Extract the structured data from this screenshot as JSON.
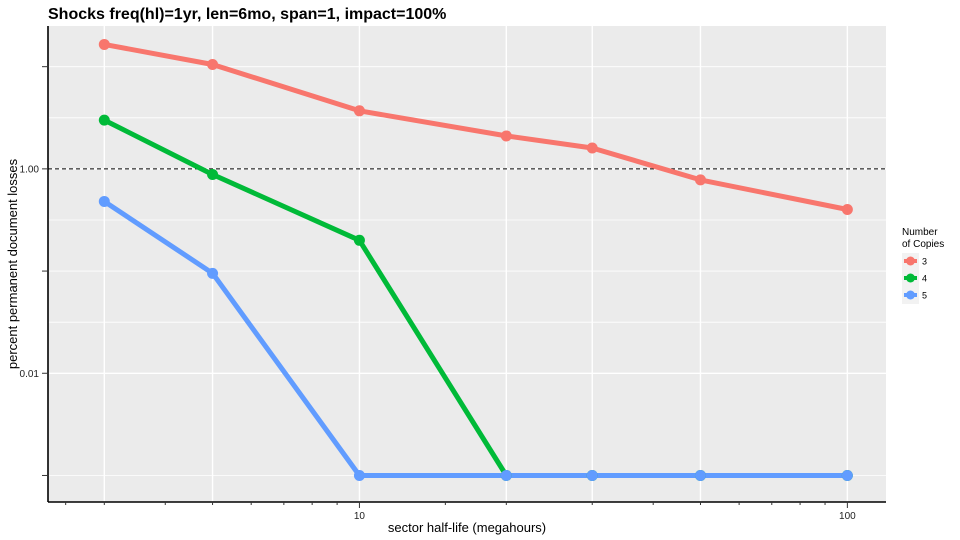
{
  "chart_data": {
    "type": "line",
    "title": "Shocks freq(hl)=1yr, len=6mo, span=1, impact=100%",
    "xlabel": "sector half-life (megahours)",
    "ylabel": "percent permanent document losses",
    "x_scale": "log10",
    "y_scale": "log10",
    "xlim": [
      2.3,
      120
    ],
    "ylim": [
      0.00055,
      25
    ],
    "x_ticks": [
      {
        "value": 10,
        "label": "10"
      },
      {
        "value": 100,
        "label": "100"
      }
    ],
    "y_ticks": [
      {
        "value": 0.01,
        "label": "0.01"
      },
      {
        "value": 1,
        "label": "1.00"
      }
    ],
    "reference_line": {
      "y": 1,
      "style": "dashed"
    },
    "grid": true,
    "legend": {
      "title_line1": "Number",
      "title_line2": "of Copies",
      "position": "right"
    },
    "x": [
      3,
      5,
      10,
      20,
      30,
      50,
      100
    ],
    "series": [
      {
        "name": "3",
        "color": "#F8766D",
        "values": [
          16.5,
          10.5,
          3.7,
          2.1,
          1.6,
          0.78,
          0.4
        ]
      },
      {
        "name": "4",
        "color": "#00BA38",
        "values": [
          3.0,
          0.88,
          0.2,
          0.001,
          0.001,
          0.001,
          0.001
        ]
      },
      {
        "name": "5",
        "color": "#619CFF",
        "values": [
          0.48,
          0.095,
          0.001,
          0.001,
          0.001,
          0.001,
          0.001
        ]
      }
    ]
  }
}
